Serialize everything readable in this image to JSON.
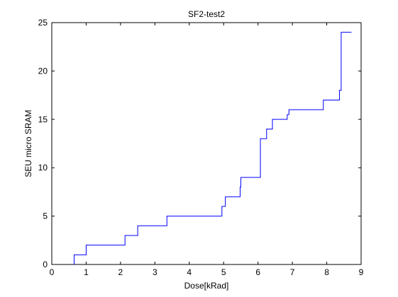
{
  "chart_data": {
    "type": "line",
    "step": true,
    "title": "SF2-test2",
    "xlabel": "Dose[kRad]",
    "ylabel": "SEU micro SRAM",
    "xlim": [
      0,
      9
    ],
    "ylim": [
      0,
      25
    ],
    "xticks": [
      "0",
      "1",
      "2",
      "3",
      "4",
      "5",
      "6",
      "7",
      "8",
      "9"
    ],
    "yticks": [
      "0",
      "5",
      "10",
      "15",
      "20",
      "25"
    ],
    "grid": false,
    "line_color": "#0000ff",
    "series": [
      {
        "x": [
          0.65,
          0.65,
          1.0,
          1.0,
          2.13,
          2.13,
          2.5,
          2.5,
          3.35,
          3.35,
          4.95,
          4.95,
          5.05,
          5.05,
          5.48,
          5.48,
          5.5,
          5.5,
          6.07,
          6.07,
          6.25,
          6.25,
          6.42,
          6.42,
          6.85,
          6.85,
          6.9,
          6.9,
          7.9,
          7.9,
          8.37,
          8.37,
          8.42,
          8.42,
          8.72
        ],
        "y": [
          0,
          1,
          1,
          2,
          2,
          3,
          3,
          4,
          4,
          5,
          5,
          6,
          6,
          7,
          7,
          8,
          8,
          9,
          9,
          13,
          13,
          14,
          14,
          15,
          15,
          15.5,
          15.5,
          16,
          16,
          17,
          17,
          18,
          18,
          24,
          24
        ]
      }
    ]
  }
}
